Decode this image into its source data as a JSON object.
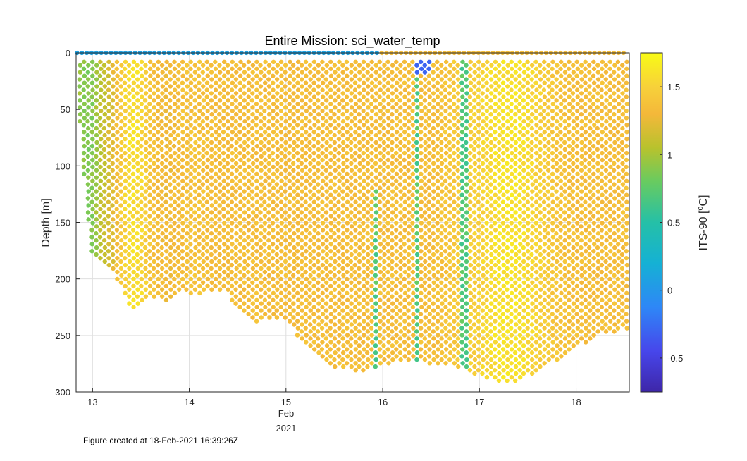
{
  "chart_data": {
    "type": "scatter",
    "title": "Entire Mission: sci_water_temp",
    "ylabel": "Depth [m]",
    "x_tick_labels": [
      "13",
      "14",
      "15",
      "16",
      "17",
      "18"
    ],
    "x_secondary_label": "Feb",
    "x_year_label": "2021",
    "y_tick_labels": [
      "0",
      "50",
      "100",
      "150",
      "200",
      "250",
      "300"
    ],
    "xlim": [
      12.83,
      18.55
    ],
    "ylim": [
      0,
      300
    ],
    "y_reversed": true,
    "grid": true,
    "colorbar": {
      "label": "ITS-90 [",
      "label_sup": "o",
      "label_unit": "C]",
      "range": [
        -0.75,
        1.75
      ],
      "tick_labels": [
        "-0.5",
        "0",
        "0.5",
        "1",
        "1.5"
      ],
      "colormap": "parula"
    },
    "points": {
      "x_unit": "day of February 2021",
      "y_unit": "depth in m",
      "profiles": [
        {
          "t": 12.86,
          "max_depth": 55,
          "temp": 0.95
        },
        {
          "t": 12.98,
          "max_depth": 175,
          "temp": 0.85
        },
        {
          "t": 13.1,
          "max_depth": 185,
          "temp": 1.1
        },
        {
          "t": 13.2,
          "max_depth": 195,
          "temp": 1.2
        },
        {
          "t": 13.3,
          "max_depth": 210,
          "temp": 1.45
        },
        {
          "t": 13.4,
          "max_depth": 230,
          "temp": 1.6
        },
        {
          "t": 13.5,
          "max_depth": 225,
          "temp": 1.55
        },
        {
          "t": 13.6,
          "max_depth": 215,
          "temp": 1.4
        },
        {
          "t": 13.75,
          "max_depth": 222,
          "temp": 1.3
        },
        {
          "t": 13.9,
          "max_depth": 210,
          "temp": 1.35
        },
        {
          "t": 14.05,
          "max_depth": 215,
          "temp": 1.4
        },
        {
          "t": 14.2,
          "max_depth": 210,
          "temp": 1.35
        },
        {
          "t": 14.35,
          "max_depth": 210,
          "temp": 1.35
        },
        {
          "t": 14.5,
          "max_depth": 225,
          "temp": 1.35
        },
        {
          "t": 14.65,
          "max_depth": 240,
          "temp": 1.35
        },
        {
          "t": 14.8,
          "max_depth": 236,
          "temp": 1.35
        },
        {
          "t": 15.0,
          "max_depth": 236,
          "temp": 1.35
        },
        {
          "t": 15.2,
          "max_depth": 260,
          "temp": 1.35
        },
        {
          "t": 15.4,
          "max_depth": 275,
          "temp": 1.35
        },
        {
          "t": 15.6,
          "max_depth": 280,
          "temp": 1.35
        },
        {
          "t": 15.8,
          "max_depth": 282,
          "temp": 1.35
        },
        {
          "t": 16.0,
          "max_depth": 276,
          "temp": 1.35
        },
        {
          "t": 16.2,
          "max_depth": 272,
          "temp": 1.35
        },
        {
          "t": 16.35,
          "max_depth": 272,
          "temp": 1.35
        },
        {
          "t": 16.5,
          "max_depth": 275,
          "temp": 1.35
        },
        {
          "t": 16.65,
          "max_depth": 275,
          "temp": 1.4
        },
        {
          "t": 16.8,
          "max_depth": 280,
          "temp": 1.45
        },
        {
          "t": 17.0,
          "max_depth": 286,
          "temp": 1.5
        },
        {
          "t": 17.2,
          "max_depth": 292,
          "temp": 1.6
        },
        {
          "t": 17.4,
          "max_depth": 290,
          "temp": 1.6
        },
        {
          "t": 17.6,
          "max_depth": 282,
          "temp": 1.5
        },
        {
          "t": 17.8,
          "max_depth": 272,
          "temp": 1.4
        },
        {
          "t": 18.0,
          "max_depth": 262,
          "temp": 1.35
        },
        {
          "t": 18.2,
          "max_depth": 250,
          "temp": 1.35
        },
        {
          "t": 18.4,
          "max_depth": 248,
          "temp": 1.35
        },
        {
          "t": 18.55,
          "max_depth": 245,
          "temp": 1.35
        }
      ]
    }
  },
  "footer": {
    "created_text": "Figure created at 18-Feb-2021 16:39:26Z"
  }
}
